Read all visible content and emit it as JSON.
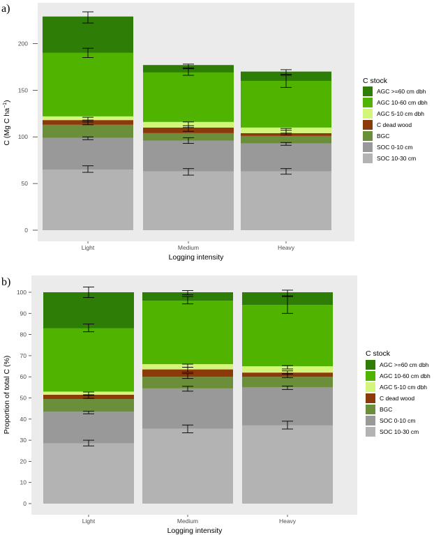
{
  "chart_data": [
    {
      "panel": "a)",
      "type": "bar",
      "stacked": true,
      "title": "",
      "xlabel": "Logging intensity",
      "ylabel_main": "C (Mg C ha",
      "ylabel_sup": "−1",
      "ylabel_end": ")",
      "ylim": [
        0,
        235
      ],
      "yticks": [
        0,
        50,
        100,
        150,
        200
      ],
      "categories": [
        "Light",
        "Medium",
        "Heavy"
      ],
      "legend_title": "C stock",
      "series": [
        {
          "name": "SOC 10-30 cm",
          "color": "#b3b3b3",
          "values": [
            65,
            63,
            63
          ]
        },
        {
          "name": "SOC 0-10 cm",
          "color": "#999999",
          "values": [
            34,
            33,
            30
          ]
        },
        {
          "name": "BGC",
          "color": "#6b8e3a",
          "values": [
            14,
            8,
            8
          ]
        },
        {
          "name": "C dead wood",
          "color": "#8b3a0a",
          "values": [
            5,
            6,
            3
          ]
        },
        {
          "name": "AGC 5-10 cm dbh",
          "color": "#d2f57a",
          "values": [
            4,
            6,
            6
          ]
        },
        {
          "name": "AGC 10-60 cm dbh",
          "color": "#4fb300",
          "values": [
            68,
            53,
            50
          ]
        },
        {
          "name": "AGC >=60 cm dbh",
          "color": "#2e7d07",
          "values": [
            39,
            8,
            10
          ]
        }
      ],
      "error_bars": [
        [
          [
            62,
            69
          ],
          [
            97,
            100
          ],
          [
            113,
            118
          ],
          [
            116,
            121
          ],
          [
            185,
            195
          ],
          [
            222,
            234
          ]
        ],
        [
          [
            59,
            66
          ],
          [
            93,
            99
          ],
          [
            106,
            112
          ],
          [
            110,
            116
          ],
          [
            166,
            173
          ],
          [
            174,
            178
          ]
        ],
        [
          [
            60,
            66
          ],
          [
            91,
            94
          ],
          [
            102,
            107
          ],
          [
            104,
            109
          ],
          [
            153,
            166
          ],
          [
            167,
            172
          ]
        ]
      ]
    },
    {
      "panel": "b)",
      "type": "bar",
      "stacked": true,
      "title": "",
      "xlabel": "Logging intensity",
      "ylabel_main": "Proportion of total C (%)",
      "ylim": [
        0,
        103
      ],
      "yticks": [
        0,
        10,
        20,
        30,
        40,
        50,
        60,
        70,
        80,
        90,
        100
      ],
      "categories": [
        "Light",
        "Medium",
        "Heavy"
      ],
      "legend_title": "C stock",
      "series": [
        {
          "name": "SOC 10-30 cm",
          "color": "#b3b3b3",
          "values": [
            28.5,
            35.5,
            37
          ]
        },
        {
          "name": "SOC 0-10 cm",
          "color": "#999999",
          "values": [
            15,
            19,
            18
          ]
        },
        {
          "name": "BGC",
          "color": "#6b8e3a",
          "values": [
            6,
            5.5,
            5
          ]
        },
        {
          "name": "C dead wood",
          "color": "#8b3a0a",
          "values": [
            2,
            3.5,
            2
          ]
        },
        {
          "name": "AGC 5-10 cm dbh",
          "color": "#d2f57a",
          "values": [
            1.5,
            2.5,
            3
          ]
        },
        {
          "name": "AGC 10-60 cm dbh",
          "color": "#4fb300",
          "values": [
            30,
            30,
            29
          ]
        },
        {
          "name": "AGC >=60 cm dbh",
          "color": "#2e7d07",
          "values": [
            17,
            4,
            6
          ]
        }
      ],
      "error_bars": [
        [
          [
            27.3,
            30
          ],
          [
            42.5,
            43.7
          ],
          [
            49.8,
            51.2
          ],
          [
            51.5,
            52.8
          ],
          [
            81.3,
            85
          ],
          [
            97.5,
            102.5
          ]
        ],
        [
          [
            33.5,
            37.2
          ],
          [
            53.2,
            55.5
          ],
          [
            59.2,
            61.5
          ],
          [
            62.2,
            64.5
          ],
          [
            64.5,
            66
          ],
          [
            94.5,
            98
          ],
          [
            98.8,
            100.8
          ]
        ],
        [
          [
            35.3,
            39
          ],
          [
            54,
            55.6
          ],
          [
            59.6,
            61.3
          ],
          [
            61.5,
            62.8
          ],
          [
            63.7,
            65.3
          ],
          [
            90,
            98
          ],
          [
            98.3,
            101
          ]
        ]
      ]
    }
  ]
}
